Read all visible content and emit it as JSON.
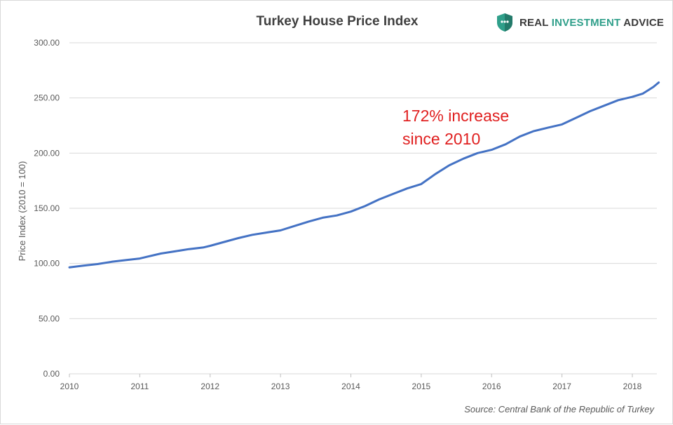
{
  "logo": {
    "icon": "shield-chat-icon",
    "part1": "REAL ",
    "part2": "INVESTMENT",
    "part3": " ADVICE",
    "color_accent": "#2f9f8a",
    "color_dark": "#3a3a3a"
  },
  "source": "Source: Central Bank of the Republic of Turkey",
  "colors": {
    "line": "#4472c4",
    "annotation": "#e02020",
    "grid": "#d9d9d9",
    "axis_text": "#595959",
    "title": "#404040"
  },
  "chart_data": {
    "type": "line",
    "title": "Turkey House Price Index",
    "xlabel": "",
    "ylabel": "Price Index (2010 = 100)",
    "ylim": [
      0,
      300
    ],
    "xlim": [
      2010,
      2018.375
    ],
    "yticks": [
      0,
      50,
      100,
      150,
      200,
      250,
      300
    ],
    "ytick_labels": [
      "0.00",
      "50.00",
      "100.00",
      "150.00",
      "200.00",
      "250.00",
      "300.00"
    ],
    "xticks": [
      2010,
      2011,
      2012,
      2013,
      2014,
      2015,
      2016,
      2017,
      2018
    ],
    "xtick_labels": [
      "2010",
      "2011",
      "2012",
      "2013",
      "2014",
      "2015",
      "2016",
      "2017",
      "2018"
    ],
    "grid": true,
    "legend": "none",
    "series": [
      {
        "name": "Turkey House Price Index",
        "x": [
          2010.0,
          2010.2,
          2010.4,
          2010.6,
          2010.8,
          2011.0,
          2011.1,
          2011.3,
          2011.5,
          2011.7,
          2011.9,
          2012.0,
          2012.2,
          2012.4,
          2012.6,
          2012.8,
          2013.0,
          2013.2,
          2013.4,
          2013.6,
          2013.8,
          2014.0,
          2014.2,
          2014.4,
          2014.6,
          2014.8,
          2015.0,
          2015.2,
          2015.4,
          2015.6,
          2015.8,
          2016.0,
          2016.2,
          2016.4,
          2016.6,
          2016.8,
          2017.0,
          2017.2,
          2017.4,
          2017.6,
          2017.8,
          2018.0,
          2018.15,
          2018.3,
          2018.375
        ],
        "values": [
          96.5,
          98,
          99.5,
          101.5,
          103,
          104.5,
          106,
          109,
          111,
          113,
          114.5,
          116,
          119.5,
          123,
          126,
          128,
          130,
          134,
          138,
          141.5,
          143.5,
          147,
          152,
          158,
          163,
          168,
          172,
          181,
          189,
          195,
          200,
          203,
          208,
          215,
          220,
          223,
          226,
          232,
          238,
          243,
          248,
          251,
          254,
          260,
          264
        ]
      }
    ],
    "annotations": [
      {
        "line1": "172% increase",
        "line2": "since 2010"
      }
    ]
  }
}
